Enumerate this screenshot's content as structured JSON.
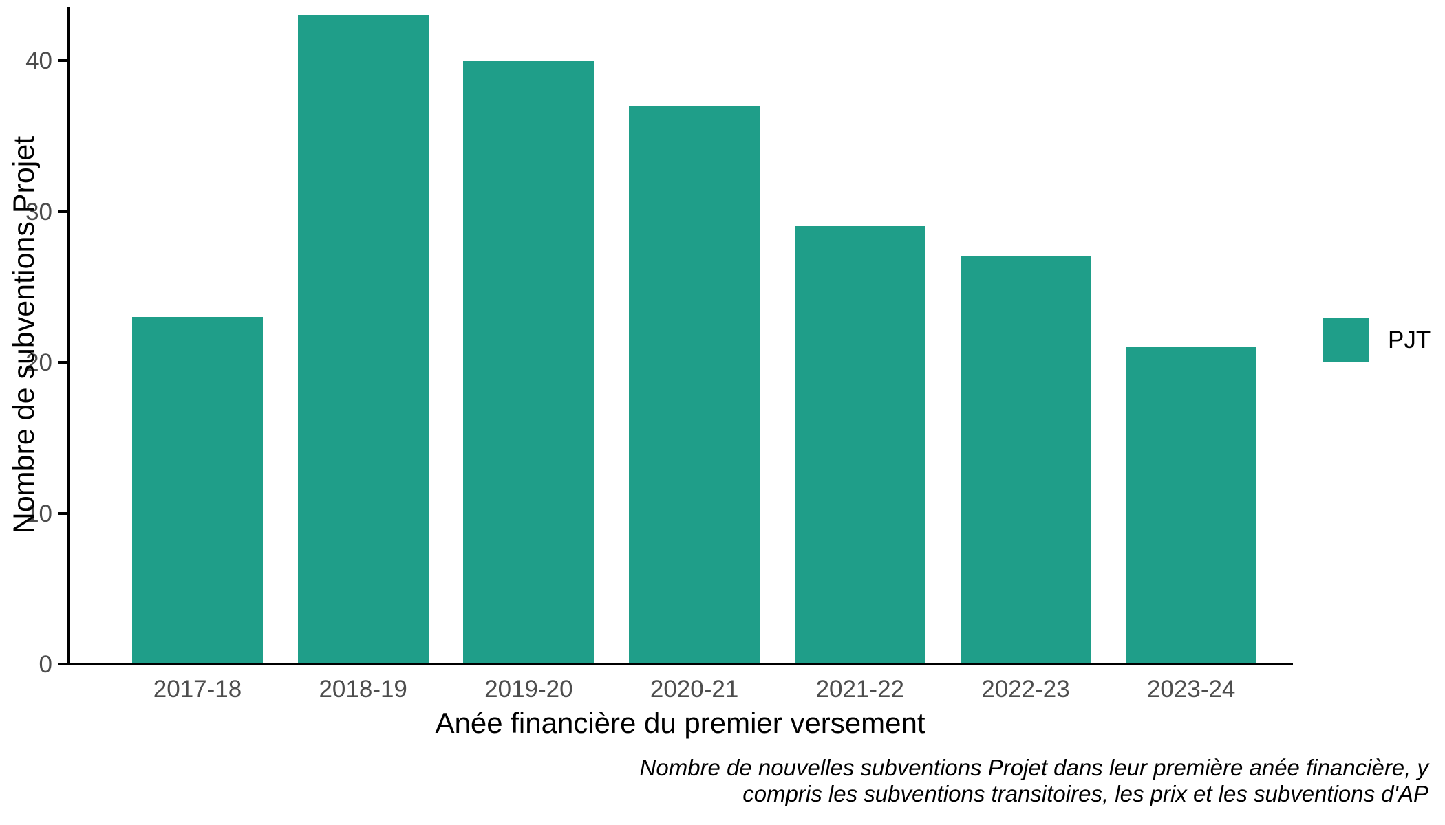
{
  "colors": {
    "bar": "#1f9e89",
    "axis_line": "#000000",
    "tick_label": "#4d4d4d",
    "title_text": "#000000",
    "background": "#ffffff"
  },
  "chart_data": {
    "type": "bar",
    "categories": [
      "2017-18",
      "2018-19",
      "2019-20",
      "2020-21",
      "2021-22",
      "2022-23",
      "2023-24"
    ],
    "series": [
      {
        "name": "PJT",
        "values": [
          23,
          43,
          40,
          37,
          29,
          27,
          21
        ]
      }
    ],
    "title": "",
    "xlabel": "Anée financière du premier versement",
    "ylabel": "Nombre de subventions Projet",
    "yticks": [
      0,
      10,
      20,
      30,
      40
    ],
    "ylim": [
      0,
      43.5
    ],
    "grid": false,
    "legend_position": "right",
    "legend_labels": [
      "PJT"
    ],
    "caption_lines": [
      "Nombre de nouvelles subventions Projet dans leur première anée financière, y",
      "compris les subventions transitoires, les prix et les subventions d'AP"
    ]
  }
}
